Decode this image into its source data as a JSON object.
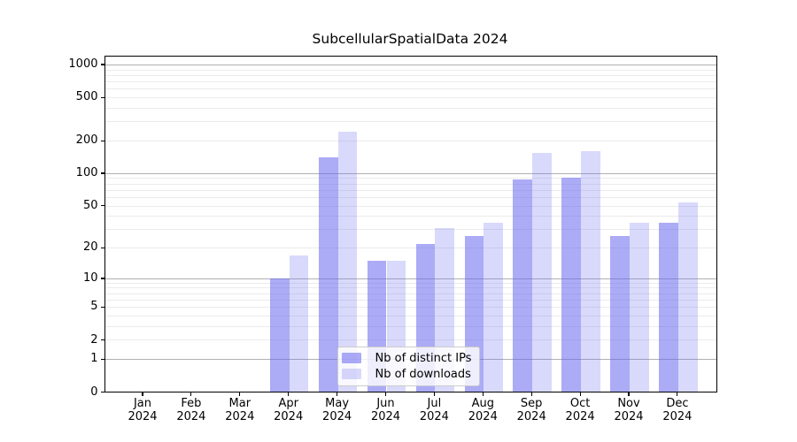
{
  "chart_data": {
    "type": "bar",
    "title": "SubcellularSpatialData 2024",
    "x_categories": [
      "Jan 2024",
      "Feb 2024",
      "Mar 2024",
      "Apr 2024",
      "May 2024",
      "Jun 2024",
      "Jul 2024",
      "Aug 2024",
      "Sep 2024",
      "Oct 2024",
      "Nov 2024",
      "Dec 2024"
    ],
    "series": [
      {
        "name": "Nb of distinct IPs",
        "color": "rgba(102,102,238,0.55)",
        "values": [
          0,
          0,
          0,
          10,
          140,
          15,
          22,
          26,
          88,
          92,
          26,
          35
        ]
      },
      {
        "name": "Nb of downloads",
        "color": "rgba(102,102,238,0.25)",
        "values": [
          0,
          0,
          0,
          17,
          242,
          15,
          31,
          35,
          155,
          160,
          35,
          54
        ]
      }
    ],
    "y_scale": "log10(1+v)",
    "y_ticks": [
      0,
      1,
      2,
      5,
      10,
      20,
      50,
      100,
      200,
      500,
      1000
    ],
    "y_major_gridlines": [
      1,
      10,
      100,
      1000
    ],
    "ylim": [
      0,
      1220
    ],
    "xlabel": "",
    "ylabel": "",
    "grid": "horizontal major+minor",
    "legend_position": "lower center",
    "colors": {
      "bar_dark_observed": "#a9a9f3",
      "bar_light_observed": "#d9d9fa",
      "major_grid": "#b0b0b0",
      "minor_grid": "#ebebeb",
      "axis": "#000000",
      "legend_border": "#cccccc"
    }
  }
}
